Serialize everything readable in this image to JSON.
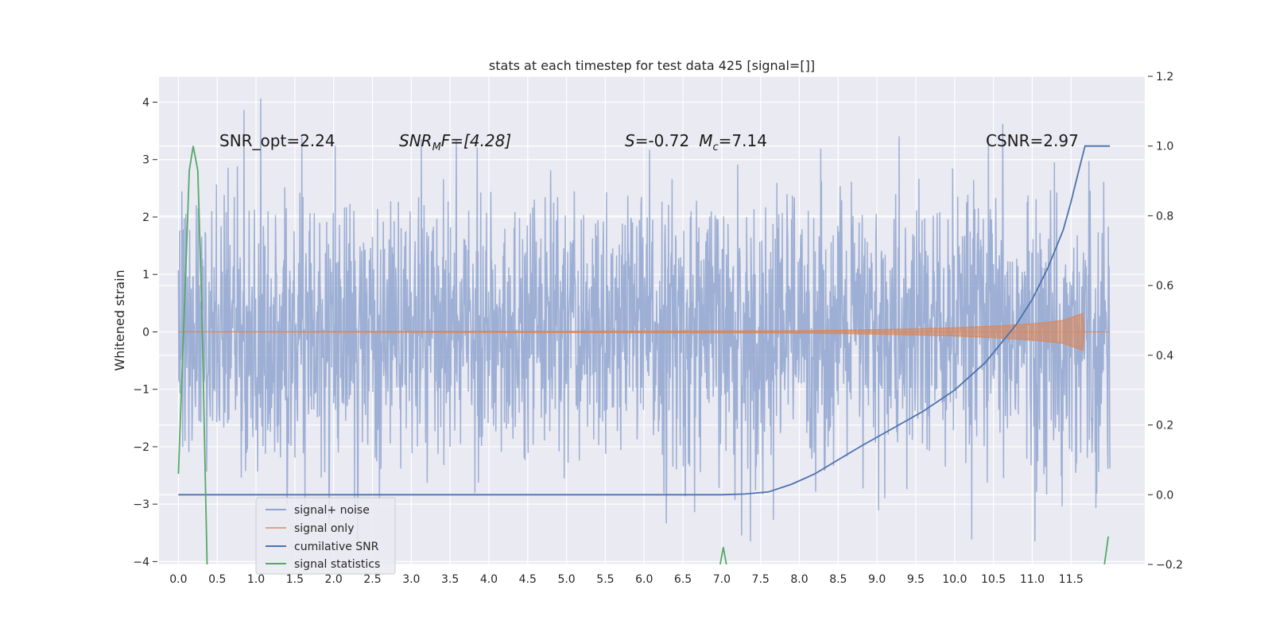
{
  "chart_data": {
    "type": "line",
    "title": "stats at each timestep for test data 425 [signal=[]]",
    "ylabel": "Whitened strain",
    "xlim": [
      -0.25,
      12.45
    ],
    "ylim": [
      -4.05,
      4.45
    ],
    "y2lim": [
      -0.2,
      1.2
    ],
    "xticks": [
      "0.0",
      "0.5",
      "1.0",
      "1.5",
      "2.0",
      "2.5",
      "3.0",
      "3.5",
      "4.0",
      "4.5",
      "5.0",
      "5.5",
      "6.0",
      "6.5",
      "7.0",
      "7.5",
      "8.0",
      "8.5",
      "9.0",
      "9.5",
      "10.0",
      "10.5",
      "11.0",
      "11.5"
    ],
    "yticks": [
      "4",
      "3",
      "2",
      "1",
      "0",
      "−1",
      "−2",
      "−3",
      "−4"
    ],
    "y2ticks": [
      "1.2",
      "1.0",
      "0.8",
      "0.6",
      "0.4",
      "0.2",
      "0.0",
      "−0.2"
    ],
    "grid": true,
    "legend_position": "lower-left",
    "annotations": {
      "snr_opt": "SNR_opt=2.24",
      "snr_mf_pre": "SNR",
      "snr_mf_sub": "M",
      "snr_mf_post": "F=[4.28]",
      "s_italic": "S",
      "s_value": "=-0.72",
      "mc_italic": "M",
      "mc_sub": "c",
      "mc_value": "=7.14",
      "csnr": "CSNR=2.97"
    },
    "series": [
      {
        "name": "signal+ noise",
        "color": "#8fa5cf",
        "axis": "left",
        "x_range": [
          0.0,
          12.0
        ],
        "y_amplitude": 2.2,
        "y_extremes": [
          -3.65,
          4.1
        ]
      },
      {
        "name": "signal only",
        "color": "#dd8452",
        "axis": "left",
        "envelope": [
          [
            0.0,
            0.0
          ],
          [
            8.0,
            0.02
          ],
          [
            9.0,
            0.04
          ],
          [
            10.0,
            0.07
          ],
          [
            10.5,
            0.1
          ],
          [
            11.0,
            0.14
          ],
          [
            11.4,
            0.2
          ],
          [
            11.65,
            0.32
          ],
          [
            11.67,
            0.0
          ]
        ]
      },
      {
        "name": "cumilative SNR",
        "color": "#4c72b0",
        "axis": "right",
        "points": [
          [
            0.0,
            0.0
          ],
          [
            7.0,
            0.0
          ],
          [
            7.3,
            0.002
          ],
          [
            7.6,
            0.008
          ],
          [
            7.9,
            0.03
          ],
          [
            8.2,
            0.06
          ],
          [
            8.5,
            0.1
          ],
          [
            8.8,
            0.14
          ],
          [
            9.2,
            0.19
          ],
          [
            9.6,
            0.24
          ],
          [
            10.0,
            0.3
          ],
          [
            10.4,
            0.38
          ],
          [
            10.8,
            0.49
          ],
          [
            11.0,
            0.56
          ],
          [
            11.2,
            0.65
          ],
          [
            11.4,
            0.76
          ],
          [
            11.5,
            0.84
          ],
          [
            11.6,
            0.93
          ],
          [
            11.68,
            1.0
          ],
          [
            12.0,
            1.0
          ]
        ]
      },
      {
        "name": "signal statistics",
        "color": "#55a868",
        "axis": "right",
        "points": [
          [
            0.0,
            0.06
          ],
          [
            0.08,
            0.55
          ],
          [
            0.14,
            0.93
          ],
          [
            0.19,
            1.0
          ],
          [
            0.25,
            0.93
          ],
          [
            0.3,
            0.55
          ],
          [
            0.37,
            -0.2
          ]
        ],
        "extra_segments": [
          [
            [
              6.98,
              -0.2
            ],
            [
              7.02,
              -0.15
            ],
            [
              7.06,
              -0.2
            ]
          ],
          [
            [
              11.93,
              -0.2
            ],
            [
              11.98,
              -0.12
            ]
          ]
        ]
      }
    ]
  }
}
